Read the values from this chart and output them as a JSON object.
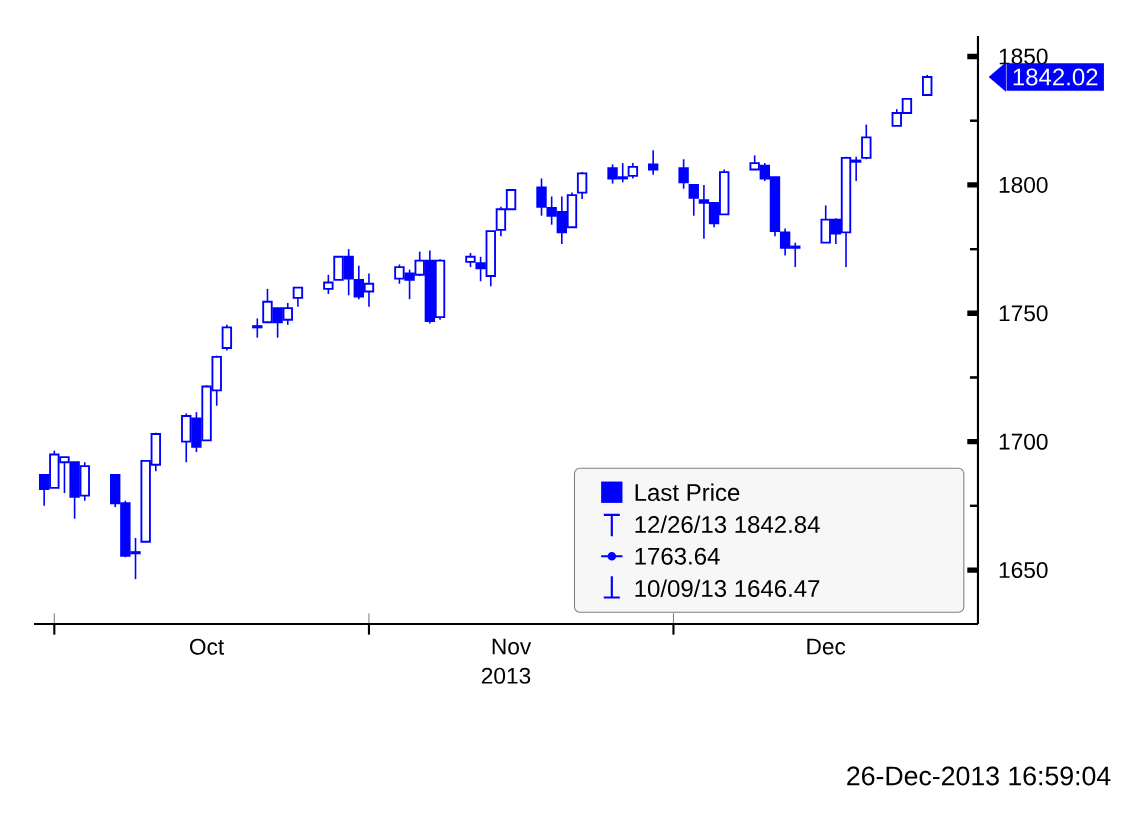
{
  "chart_data": {
    "type": "candlestick",
    "x": [
      "2013-09-30",
      "2013-10-01",
      "2013-10-02",
      "2013-10-03",
      "2013-10-04",
      "2013-10-07",
      "2013-10-08",
      "2013-10-09",
      "2013-10-10",
      "2013-10-11",
      "2013-10-14",
      "2013-10-15",
      "2013-10-16",
      "2013-10-17",
      "2013-10-18",
      "2013-10-21",
      "2013-10-22",
      "2013-10-23",
      "2013-10-24",
      "2013-10-25",
      "2013-10-28",
      "2013-10-29",
      "2013-10-30",
      "2013-10-31",
      "2013-11-01",
      "2013-11-04",
      "2013-11-05",
      "2013-11-06",
      "2013-11-07",
      "2013-11-08",
      "2013-11-11",
      "2013-11-12",
      "2013-11-13",
      "2013-11-14",
      "2013-11-15",
      "2013-11-18",
      "2013-11-19",
      "2013-11-20",
      "2013-11-21",
      "2013-11-22",
      "2013-11-25",
      "2013-11-26",
      "2013-11-27",
      "2013-11-29",
      "2013-12-02",
      "2013-12-03",
      "2013-12-04",
      "2013-12-05",
      "2013-12-06",
      "2013-12-09",
      "2013-12-10",
      "2013-12-11",
      "2013-12-12",
      "2013-12-13",
      "2013-12-16",
      "2013-12-17",
      "2013-12-18",
      "2013-12-19",
      "2013-12-20",
      "2013-12-23",
      "2013-12-24",
      "2013-12-26"
    ],
    "series": [
      {
        "name": "Last Price",
        "color": "#0000ff",
        "ohlc": [
          [
            1687,
            1687,
            1675,
            1681.5
          ],
          [
            1682,
            1696.5,
            1682,
            1695
          ],
          [
            1692,
            1694,
            1680,
            1694
          ],
          [
            1692,
            1692,
            1670,
            1678.5
          ],
          [
            1679,
            1692,
            1677,
            1690.5
          ],
          [
            1687,
            1687,
            1674.5,
            1676
          ],
          [
            1676,
            1677,
            1655,
            1655.5
          ],
          [
            1657,
            1662.5,
            1646.47,
            1656.5
          ],
          [
            1661,
            1692.5,
            1661,
            1692.5
          ],
          [
            1691,
            1703.5,
            1688.5,
            1703
          ],
          [
            1700,
            1711,
            1692,
            1710
          ],
          [
            1709,
            1711.5,
            1696,
            1698
          ],
          [
            1700.5,
            1722,
            1700.5,
            1721.5
          ],
          [
            1720,
            1733.5,
            1714,
            1733
          ],
          [
            1736.5,
            1745.5,
            1735.5,
            1744.5
          ],
          [
            1745,
            1748,
            1740.5,
            1744.5
          ],
          [
            1746.5,
            1759.5,
            1746.5,
            1754.5
          ],
          [
            1752,
            1752,
            1740.5,
            1746.5
          ],
          [
            1747.5,
            1754,
            1745.5,
            1752
          ],
          [
            1756,
            1760,
            1752.5,
            1760
          ],
          [
            1759.5,
            1765,
            1757.5,
            1762
          ],
          [
            1763,
            1772,
            1763,
            1772
          ],
          [
            1772,
            1775,
            1757,
            1763.5
          ],
          [
            1763,
            1768.5,
            1755.5,
            1756.5
          ],
          [
            1758.5,
            1765.5,
            1752.5,
            1761.5
          ],
          [
            1763.5,
            1769,
            1761.5,
            1768
          ],
          [
            1765.5,
            1767,
            1755.5,
            1763
          ],
          [
            1765,
            1774,
            1764.5,
            1770.5
          ],
          [
            1770.5,
            1774.5,
            1746,
            1747
          ],
          [
            1748.5,
            1771,
            1747.5,
            1770.5
          ],
          [
            1770,
            1773.5,
            1768,
            1772
          ],
          [
            1769.5,
            1772,
            1762.5,
            1767.5
          ],
          [
            1764.5,
            1782,
            1760.5,
            1782
          ],
          [
            1782.5,
            1791.5,
            1780,
            1790.5
          ],
          [
            1790.5,
            1798,
            1790.5,
            1798
          ],
          [
            1799,
            1802.5,
            1788,
            1791.5
          ],
          [
            1791,
            1795.5,
            1784.5,
            1788
          ],
          [
            1789.5,
            1795.5,
            1777,
            1781.5
          ],
          [
            1783.5,
            1797,
            1783.5,
            1796
          ],
          [
            1797,
            1805,
            1794.5,
            1804.5
          ],
          [
            1806.5,
            1808,
            1800.5,
            1802.5
          ],
          [
            1803,
            1808.5,
            1801,
            1802.5
          ],
          [
            1803.5,
            1808.5,
            1802.5,
            1807
          ],
          [
            1808,
            1813.5,
            1804,
            1806
          ],
          [
            1806.5,
            1810,
            1798.5,
            1801
          ],
          [
            1800,
            1800,
            1788,
            1795
          ],
          [
            1794,
            1800,
            1779,
            1793
          ],
          [
            1793,
            1793,
            1783.5,
            1785
          ],
          [
            1788.5,
            1806,
            1788.5,
            1805
          ],
          [
            1806,
            1811.5,
            1806,
            1808.5
          ],
          [
            1807.5,
            1808.5,
            1801.5,
            1802.5
          ],
          [
            1803,
            1803,
            1780,
            1782
          ],
          [
            1781.5,
            1783,
            1772.5,
            1775.5
          ],
          [
            1776,
            1777.5,
            1768,
            1775.5
          ],
          [
            1777.5,
            1792,
            1777.5,
            1786.5
          ],
          [
            1786.5,
            1787,
            1777,
            1781
          ],
          [
            1781.5,
            1811,
            1768,
            1810.5
          ],
          [
            1809,
            1811,
            1801.5,
            1809.5
          ],
          [
            1810.5,
            1823.5,
            1810,
            1818.5
          ],
          [
            1823,
            1829.5,
            1823,
            1828
          ],
          [
            1828,
            1833.5,
            1828,
            1833.5
          ],
          [
            1835,
            1842.84,
            1835,
            1842.02
          ]
        ]
      }
    ],
    "xlim": [
      "2013-09-29",
      "2013-12-31"
    ],
    "xticks": [
      {
        "value": "2013-10-01",
        "label": null
      },
      {
        "value": "2013-10-16",
        "label": "Oct"
      },
      {
        "value": "2013-11-01",
        "label": null
      },
      {
        "value": "2013-11-15",
        "label": "Nov"
      },
      {
        "value": "2013-12-01",
        "label": null
      },
      {
        "value": "2013-12-16",
        "label": "Dec"
      }
    ],
    "xlabel": "2013",
    "ylim": [
      1629,
      1858
    ],
    "yticks": [
      1650,
      {
        "value": 1675,
        "label": null
      },
      1700,
      {
        "value": 1725,
        "label": null
      },
      1750,
      {
        "value": 1775,
        "label": null
      },
      1800,
      {
        "value": 1825,
        "label": null
      },
      1850
    ],
    "legend": "bottom right",
    "annotations": [
      "12/26/13 1842.84",
      "1763.64",
      "10/09/13 1646.47",
      "1842.02",
      "26-Dec-2013 16:59:04"
    ]
  }
}
